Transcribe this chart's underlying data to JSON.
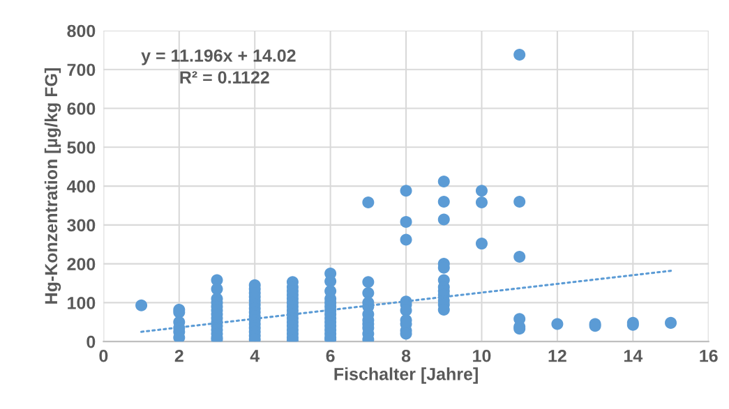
{
  "chart_data": {
    "type": "scatter",
    "xlabel": "Fischalter [Jahre]",
    "ylabel": "Hg-Konzentration [µg/kg FG]",
    "xlim": [
      0,
      16
    ],
    "xticks": [
      0,
      2,
      4,
      6,
      8,
      10,
      12,
      14,
      16
    ],
    "ylim": [
      0,
      800
    ],
    "yticks": [
      0,
      100,
      200,
      300,
      400,
      500,
      600,
      700,
      800
    ],
    "grid": true,
    "legend": false,
    "marker": "circle",
    "annotations": [
      "y = 11.196x + 14.02",
      "R² = 0.1122"
    ],
    "series": [
      {
        "color": "#5b9bd5",
        "x": [
          1,
          2,
          2,
          2,
          2,
          2,
          2,
          3,
          3,
          3,
          3,
          3,
          3,
          3,
          3,
          3,
          3,
          3,
          3,
          3,
          3,
          4,
          4,
          4,
          4,
          4,
          4,
          4,
          4,
          4,
          4,
          4,
          4,
          4,
          4,
          4,
          5,
          5,
          5,
          5,
          5,
          5,
          5,
          5,
          5,
          5,
          5,
          5,
          5,
          5,
          5,
          5,
          6,
          6,
          6,
          6,
          6,
          6,
          6,
          6,
          6,
          6,
          6,
          6,
          6,
          6,
          6,
          7,
          7,
          7,
          7,
          7,
          7,
          7,
          7,
          7,
          7,
          7,
          8,
          8,
          8,
          8,
          8,
          8,
          8,
          8,
          8,
          8,
          9,
          9,
          9,
          9,
          9,
          9,
          9,
          9,
          9,
          9,
          9,
          9,
          10,
          10,
          10,
          11,
          11,
          11,
          11,
          11,
          11,
          12,
          13,
          13,
          14,
          14,
          15
        ],
        "values": [
          93,
          82,
          75,
          50,
          35,
          25,
          10,
          158,
          135,
          110,
          100,
          90,
          80,
          70,
          60,
          50,
          40,
          30,
          20,
          10,
          5,
          145,
          135,
          125,
          115,
          105,
          95,
          85,
          75,
          65,
          55,
          45,
          35,
          25,
          15,
          5,
          153,
          140,
          130,
          120,
          110,
          100,
          90,
          80,
          70,
          60,
          50,
          40,
          30,
          20,
          10,
          2,
          175,
          155,
          130,
          110,
          100,
          90,
          80,
          70,
          60,
          50,
          40,
          30,
          20,
          10,
          5,
          358,
          153,
          125,
          100,
          90,
          70,
          55,
          45,
          35,
          20,
          5,
          388,
          308,
          262,
          103,
          95,
          80,
          55,
          45,
          28,
          20,
          412,
          360,
          314,
          200,
          190,
          158,
          140,
          130,
          120,
          105,
          95,
          82,
          388,
          358,
          252,
          738,
          360,
          218,
          58,
          38,
          33,
          45,
          45,
          40,
          48,
          43,
          48
        ]
      },
      {
        "type": "line",
        "color": "#5b9bd5",
        "line_style": "dotted",
        "marker": "none",
        "x": [
          1,
          15
        ],
        "values": [
          25,
          182
        ]
      }
    ]
  }
}
